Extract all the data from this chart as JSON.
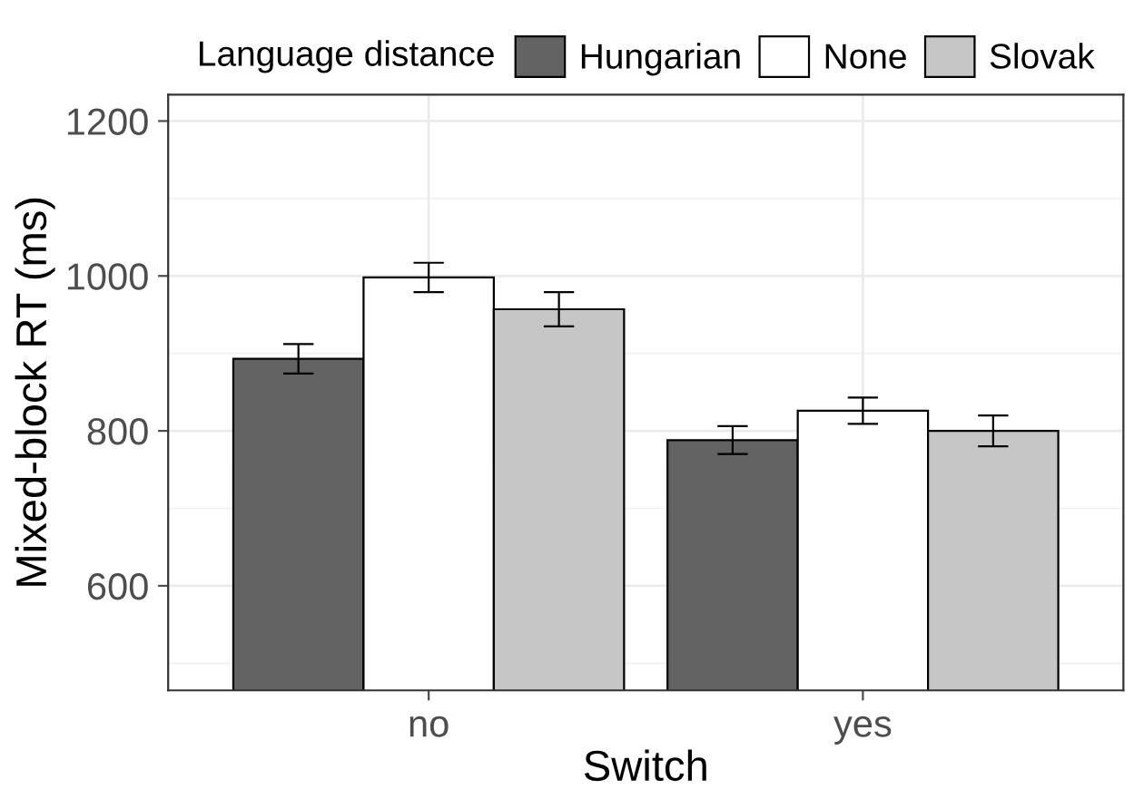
{
  "chart_data": {
    "type": "bar",
    "xlabel": "Switch",
    "ylabel": "Mixed-block RT (ms)",
    "legend_title": "Language distance",
    "categories": [
      "no",
      "yes"
    ],
    "series": [
      {
        "name": "Hungarian",
        "color": "#636363",
        "values": [
          893,
          788
        ],
        "errors": [
          19,
          18
        ]
      },
      {
        "name": "None",
        "color": "#ffffff",
        "values": [
          998,
          826
        ],
        "errors": [
          19,
          17
        ]
      },
      {
        "name": "Slovak",
        "color": "#c6c6c6",
        "values": [
          957,
          800
        ],
        "errors": [
          22,
          20
        ]
      }
    ],
    "ylim": [
      465,
      1234
    ],
    "yticks": [
      600,
      800,
      1000,
      1200
    ],
    "grid": true,
    "legend": "top"
  }
}
